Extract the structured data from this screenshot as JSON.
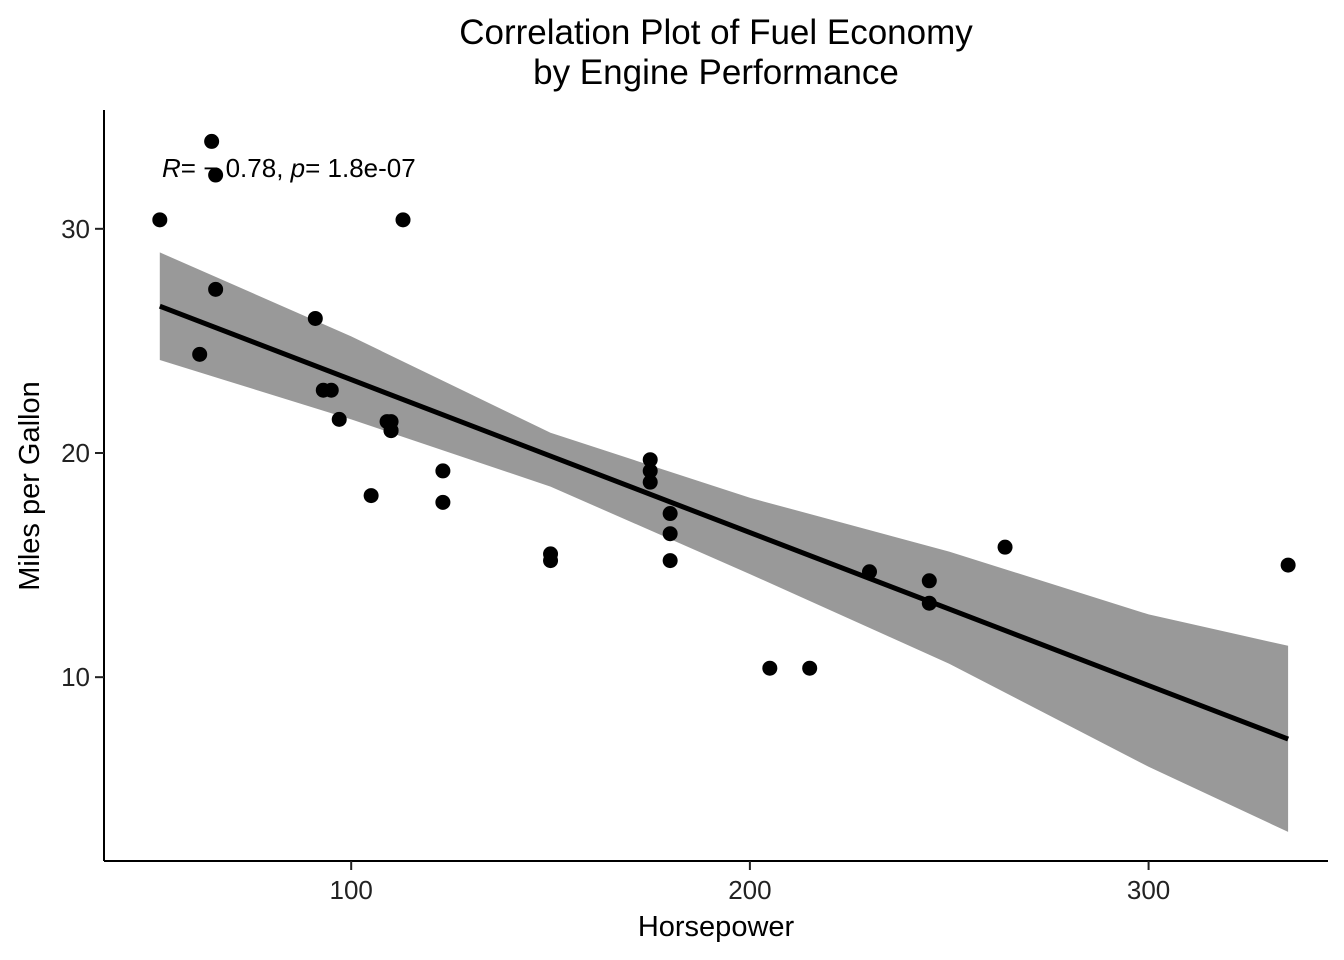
{
  "chart_data": {
    "type": "scatter",
    "title_lines": [
      "Correlation Plot of Fuel Economy",
      "by Engine Performance"
    ],
    "xlabel": "Horsepower",
    "ylabel": "Miles per Gallon",
    "xlim": [
      38,
      345
    ],
    "ylim": [
      1.8,
      35.3
    ],
    "xticks": [
      100,
      200,
      300
    ],
    "yticks": [
      10,
      20,
      30
    ],
    "grid": false,
    "legend": "none",
    "annotation": {
      "r_label": "R",
      "r_value": "= − 0.78, ",
      "p_label": "p",
      "p_value": "= 1.8e-07"
    },
    "points": [
      {
        "x": 110,
        "y": 21.0
      },
      {
        "x": 110,
        "y": 21.0
      },
      {
        "x": 93,
        "y": 22.8
      },
      {
        "x": 110,
        "y": 21.4
      },
      {
        "x": 175,
        "y": 18.7
      },
      {
        "x": 105,
        "y": 18.1
      },
      {
        "x": 245,
        "y": 14.3
      },
      {
        "x": 62,
        "y": 24.4
      },
      {
        "x": 95,
        "y": 22.8
      },
      {
        "x": 123,
        "y": 19.2
      },
      {
        "x": 123,
        "y": 17.8
      },
      {
        "x": 180,
        "y": 16.4
      },
      {
        "x": 180,
        "y": 17.3
      },
      {
        "x": 180,
        "y": 15.2
      },
      {
        "x": 205,
        "y": 10.4
      },
      {
        "x": 215,
        "y": 10.4
      },
      {
        "x": 230,
        "y": 14.7
      },
      {
        "x": 66,
        "y": 32.4
      },
      {
        "x": 52,
        "y": 30.4
      },
      {
        "x": 65,
        "y": 33.9
      },
      {
        "x": 97,
        "y": 21.5
      },
      {
        "x": 150,
        "y": 15.5
      },
      {
        "x": 150,
        "y": 15.2
      },
      {
        "x": 245,
        "y": 13.3
      },
      {
        "x": 175,
        "y": 19.2
      },
      {
        "x": 66,
        "y": 27.3
      },
      {
        "x": 91,
        "y": 26.0
      },
      {
        "x": 113,
        "y": 30.4
      },
      {
        "x": 264,
        "y": 15.8
      },
      {
        "x": 175,
        "y": 19.7
      },
      {
        "x": 335,
        "y": 15.0
      },
      {
        "x": 109,
        "y": 21.4
      }
    ],
    "fit": {
      "method": "linear",
      "x": [
        52,
        335
      ],
      "y": [
        26.55,
        7.24
      ],
      "band_x": [
        52,
        100,
        150,
        200,
        250,
        300,
        335
      ],
      "band_lower": [
        24.15,
        21.5,
        18.5,
        14.6,
        10.6,
        6.0,
        3.1
      ],
      "band_upper": [
        28.95,
        25.2,
        20.9,
        18.0,
        15.6,
        12.8,
        11.4
      ]
    },
    "colors": {
      "points": "#000000",
      "line": "#000000",
      "band": "#999999"
    }
  }
}
